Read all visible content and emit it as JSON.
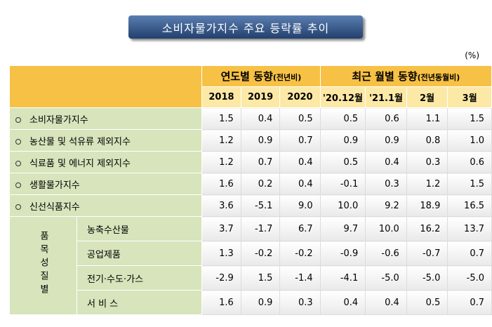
{
  "title": "소비자물가지수 주요 등락률 추이",
  "unit": "(%)",
  "header": {
    "groups": [
      {
        "title": "연도별 동향",
        "note": "(전년비)"
      },
      {
        "title": "최근 월별 동향",
        "note": "(전년동월비)"
      }
    ],
    "columns": [
      "2018",
      "2019",
      "2020",
      "'20.12월",
      "'21.1월",
      "2월",
      "3월"
    ]
  },
  "table": {
    "rows": [
      {
        "label": "소비자물가지수",
        "values": [
          "1.5",
          "0.4",
          "0.5",
          "0.5",
          "0.6",
          "1.1",
          "1.5"
        ]
      },
      {
        "label": "농산물 및 석유류 제외지수",
        "values": [
          "1.2",
          "0.9",
          "0.7",
          "0.9",
          "0.9",
          "0.8",
          "1.0"
        ]
      },
      {
        "label": "식료품 및 에너지 제외지수",
        "values": [
          "1.2",
          "0.7",
          "0.4",
          "0.5",
          "0.4",
          "0.3",
          "0.6"
        ]
      },
      {
        "label": "생활물가지수",
        "values": [
          "1.6",
          "0.2",
          "0.4",
          "-0.1",
          "0.3",
          "1.2",
          "1.5"
        ]
      },
      {
        "label": "신선식품지수",
        "values": [
          "3.6",
          "-5.1",
          "9.0",
          "10.0",
          "9.2",
          "18.9",
          "16.5"
        ]
      }
    ],
    "group": {
      "label": "품목성질별",
      "rows": [
        {
          "label": "농축수산물",
          "values": [
            "3.7",
            "-1.7",
            "6.7",
            "9.7",
            "10.0",
            "16.2",
            "13.7"
          ]
        },
        {
          "label": "공업제품",
          "values": [
            "1.3",
            "-0.2",
            "-0.2",
            "-0.9",
            "-0.6",
            "-0.7",
            "0.7"
          ]
        },
        {
          "label": "전기·수도·가스",
          "values": [
            "-2.9",
            "1.5",
            "-1.4",
            "-4.1",
            "-5.0",
            "-5.0",
            "-5.0"
          ]
        },
        {
          "label": "서 비 스",
          "values": [
            "1.6",
            "0.9",
            "0.3",
            "0.4",
            "0.4",
            "0.5",
            "0.7"
          ]
        }
      ]
    }
  }
}
